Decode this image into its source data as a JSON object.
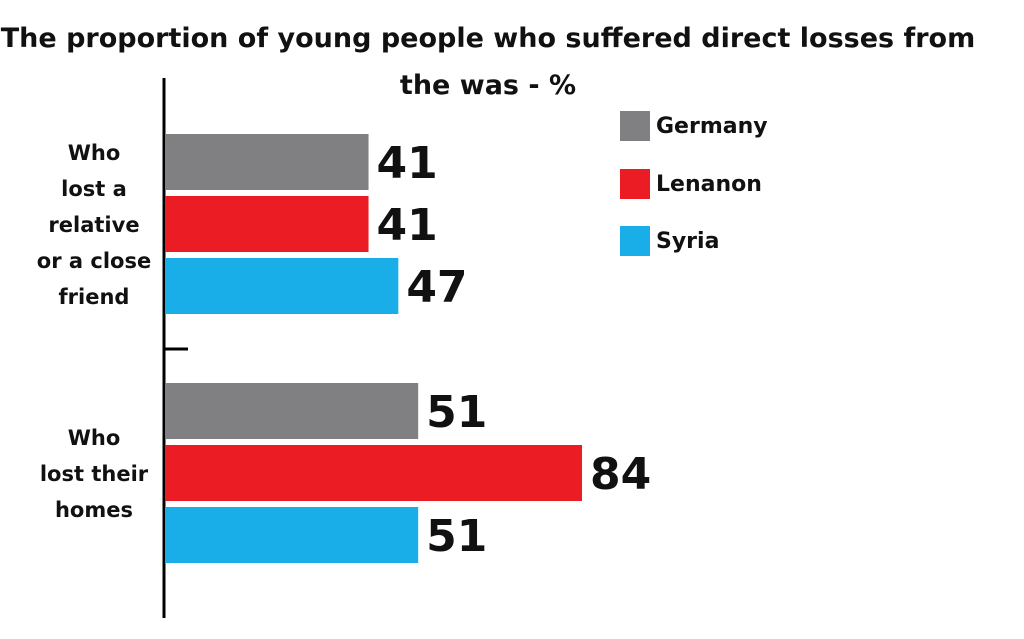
{
  "chart_data": {
    "type": "bar",
    "orientation": "horizontal",
    "title": "The proportion of young people who suffered direct losses from the was - %",
    "title_lines": [
      "The proportion of young people who suffered direct losses from",
      "the was - %"
    ],
    "categories": [
      "Who lost a relative or a close friend",
      "Who lost their homes"
    ],
    "category_lines": [
      [
        "Who",
        "lost a",
        "relative",
        "or a close",
        "friend"
      ],
      [
        "Who",
        "lost their",
        "homes"
      ]
    ],
    "series": [
      {
        "name": "Germany",
        "color": "#808083",
        "values": [
          41,
          51
        ]
      },
      {
        "name": "Lenanon",
        "color": "#ec1c24",
        "values": [
          41,
          84
        ]
      },
      {
        "name": "Syria",
        "color": "#19aee8",
        "values": [
          47,
          51
        ]
      }
    ],
    "xlim": [
      0,
      100
    ],
    "grid": false,
    "legend_position": "top-right",
    "data_labels": true
  }
}
